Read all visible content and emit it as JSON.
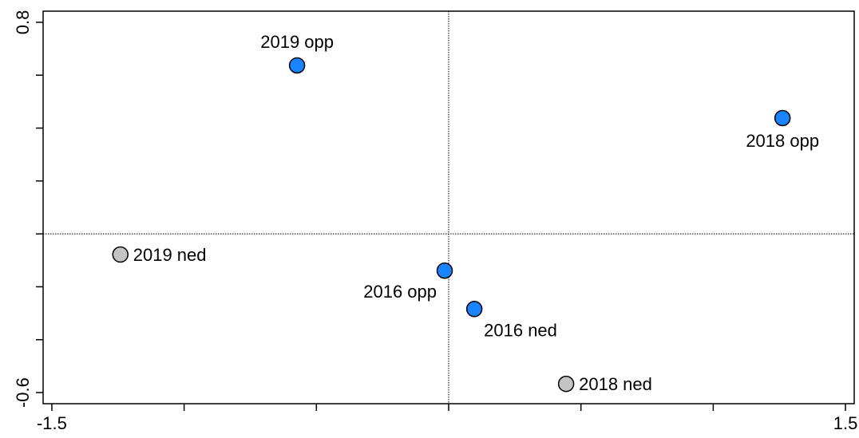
{
  "chart_data": {
    "type": "scatter",
    "labels": [
      "2019 opp",
      "2018 opp",
      "2019 ned",
      "2016 opp",
      "2016 ned",
      "2018 ned"
    ],
    "x": [
      -0.573,
      1.262,
      -1.241,
      -0.015,
      0.097,
      0.444
    ],
    "y": [
      0.637,
      0.438,
      -0.078,
      -0.139,
      -0.284,
      -0.567
    ],
    "colors": [
      "#1a84ff",
      "#1a84ff",
      "#c4c4c4",
      "#1a84ff",
      "#1a84ff",
      "#c4c4c4"
    ],
    "xlim": [
      -1.533,
      1.533
    ],
    "ylim": [
      -0.642,
      0.842
    ],
    "xticks": [
      -1.5,
      1.5
    ],
    "yticks": [
      -0.6,
      0.8
    ],
    "xminor": [
      -1,
      -0.5,
      0,
      0.5,
      1
    ],
    "yminor": [
      -0.4,
      -0.2,
      0,
      0.2,
      0.4,
      0.6
    ],
    "reference_lines": {
      "x": 0,
      "y": 0
    }
  }
}
